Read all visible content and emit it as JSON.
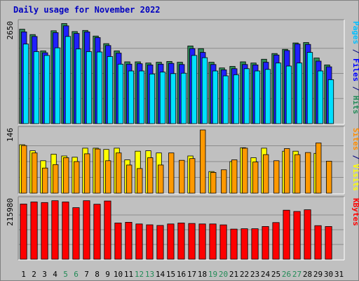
{
  "chart_data": {
    "type": "bar",
    "title": "Daily usage for November 2022",
    "categories": [
      "1",
      "2",
      "3",
      "4",
      "5",
      "6",
      "7",
      "8",
      "9",
      "10",
      "11",
      "12",
      "13",
      "14",
      "15",
      "16",
      "17",
      "18",
      "19",
      "20",
      "21",
      "22",
      "23",
      "24",
      "25",
      "26",
      "27",
      "28",
      "29",
      "30",
      "31"
    ],
    "weekend_days": [
      "5",
      "6",
      "12",
      "13",
      "19",
      "20",
      "26",
      "27"
    ],
    "weekend_color": "#228b57",
    "day_color": "#000000",
    "panels": [
      {
        "id": "hits",
        "ymax": 2650,
        "ymax_label": "2650",
        "right_label_parts": [
          {
            "text": "Pages",
            "color": "#00bfff"
          },
          {
            "text": " / ",
            "color": "#000080"
          },
          {
            "text": "Files",
            "color": "#0000ff"
          },
          {
            "text": " / ",
            "color": "#000080"
          },
          {
            "text": "Hits",
            "color": "#228b57"
          }
        ],
        "series": [
          {
            "name": "Hits",
            "color": "#2e8b57",
            "values": [
              2490,
              2350,
              1920,
              2450,
              2640,
              2430,
              2460,
              2310,
              2110,
              1920,
              1630,
              1630,
              1600,
              1620,
              1640,
              1620,
              2050,
              1980,
              1620,
              1470,
              1510,
              1630,
              1600,
              1700,
              1850,
              1960,
              2130,
              2140,
              1730,
              1550,
              0
            ]
          },
          {
            "name": "Files",
            "color": "#2020ff",
            "values": [
              2420,
              2300,
              1870,
              2400,
              2580,
              2380,
              2420,
              2270,
              2060,
              1860,
              1570,
              1580,
              1550,
              1570,
              1590,
              1560,
              1980,
              1880,
              1560,
              1420,
              1450,
              1560,
              1550,
              1620,
              1810,
              1930,
              2100,
              2090,
              1650,
              1500,
              0
            ]
          },
          {
            "name": "Pages",
            "color": "#00e0ff",
            "values": [
              2100,
              1900,
              1800,
              2000,
              2300,
              1970,
              1900,
              1890,
              1770,
              1570,
              1390,
              1390,
              1310,
              1360,
              1320,
              1330,
              1800,
              1740,
              1390,
              1260,
              1290,
              1450,
              1390,
              1430,
              1600,
              1520,
              1600,
              1880,
              1390,
              1160,
              0
            ]
          }
        ]
      },
      {
        "id": "visits",
        "ymax": 146,
        "ymax_label": "146",
        "right_label_parts": [
          {
            "text": "Sites",
            "color": "#ff8c00"
          },
          {
            "text": " / ",
            "color": "#000080"
          },
          {
            "text": "Visits",
            "color": "#ffff00"
          }
        ],
        "series": [
          {
            "name": "Visits",
            "color": "#ffff00",
            "values": [
              112,
              98,
              75,
              90,
              86,
              83,
              104,
              104,
              101,
              104,
              77,
              97,
              98,
              93,
              0,
              0,
              86,
              0,
              50,
              0,
              73,
              105,
              82,
              104,
              0,
              97,
              97,
              0,
              92,
              0,
              0
            ]
          },
          {
            "name": "Sites",
            "color": "#ff9900",
            "values": [
              110,
              93,
              58,
              66,
              82,
              73,
              91,
              102,
              75,
              93,
              65,
              57,
              82,
              65,
              93,
              76,
              80,
              146,
              48,
              54,
              77,
              104,
              72,
              89,
              75,
              103,
              89,
              94,
              116,
              74,
              0
            ]
          }
        ]
      },
      {
        "id": "kbytes",
        "ymax": 215980,
        "ymax_label": "215980",
        "right_label_parts": [
          {
            "text": "KBytes",
            "color": "#ff0000"
          }
        ],
        "series": [
          {
            "name": "KBytes",
            "color": "#ff0000",
            "values": [
              202000,
              209600,
              207500,
              214300,
              209600,
              188800,
              214300,
              201400,
              213200,
              132600,
              135300,
              129100,
              126000,
              123800,
              129100,
              132600,
              130800,
              129100,
              129100,
              125700,
              110300,
              111600,
              111600,
              119900,
              134100,
              179400,
              174800,
              181100,
              122800,
              119900,
              0
            ]
          }
        ]
      }
    ]
  }
}
